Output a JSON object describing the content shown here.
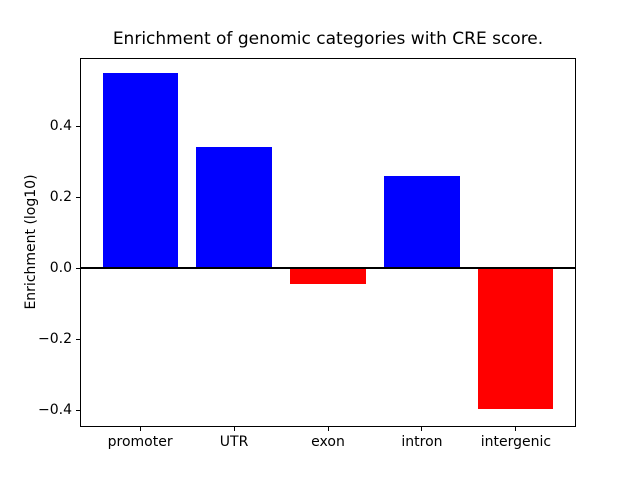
{
  "chart_data": {
    "type": "bar",
    "title": "Enrichment of genomic categories with CRE score.",
    "xlabel": "",
    "ylabel": "Enrichment (log10)",
    "categories": [
      "promoter",
      "UTR",
      "exon",
      "intron",
      "intergenic"
    ],
    "values": [
      0.55,
      0.34,
      -0.045,
      0.26,
      -0.395
    ],
    "bar_colors": [
      "#0000ff",
      "#0000ff",
      "#ff0000",
      "#0000ff",
      "#ff0000"
    ],
    "positive_color": "#0000ff",
    "negative_color": "#ff0000",
    "bar_width_fraction": 0.8,
    "ylim": [
      -0.447,
      0.592
    ],
    "xlim": [
      -0.64,
      4.64
    ],
    "yticks": [
      0.4,
      0.2,
      0.0,
      -0.2,
      -0.4
    ],
    "ytick_labels": [
      "0.4",
      "0.2",
      "0.0",
      "−0.2",
      "−0.4"
    ],
    "zero_line": true,
    "grid": false,
    "legend": null,
    "background_color": "#ffffff",
    "axes_edge_color": "#000000"
  }
}
